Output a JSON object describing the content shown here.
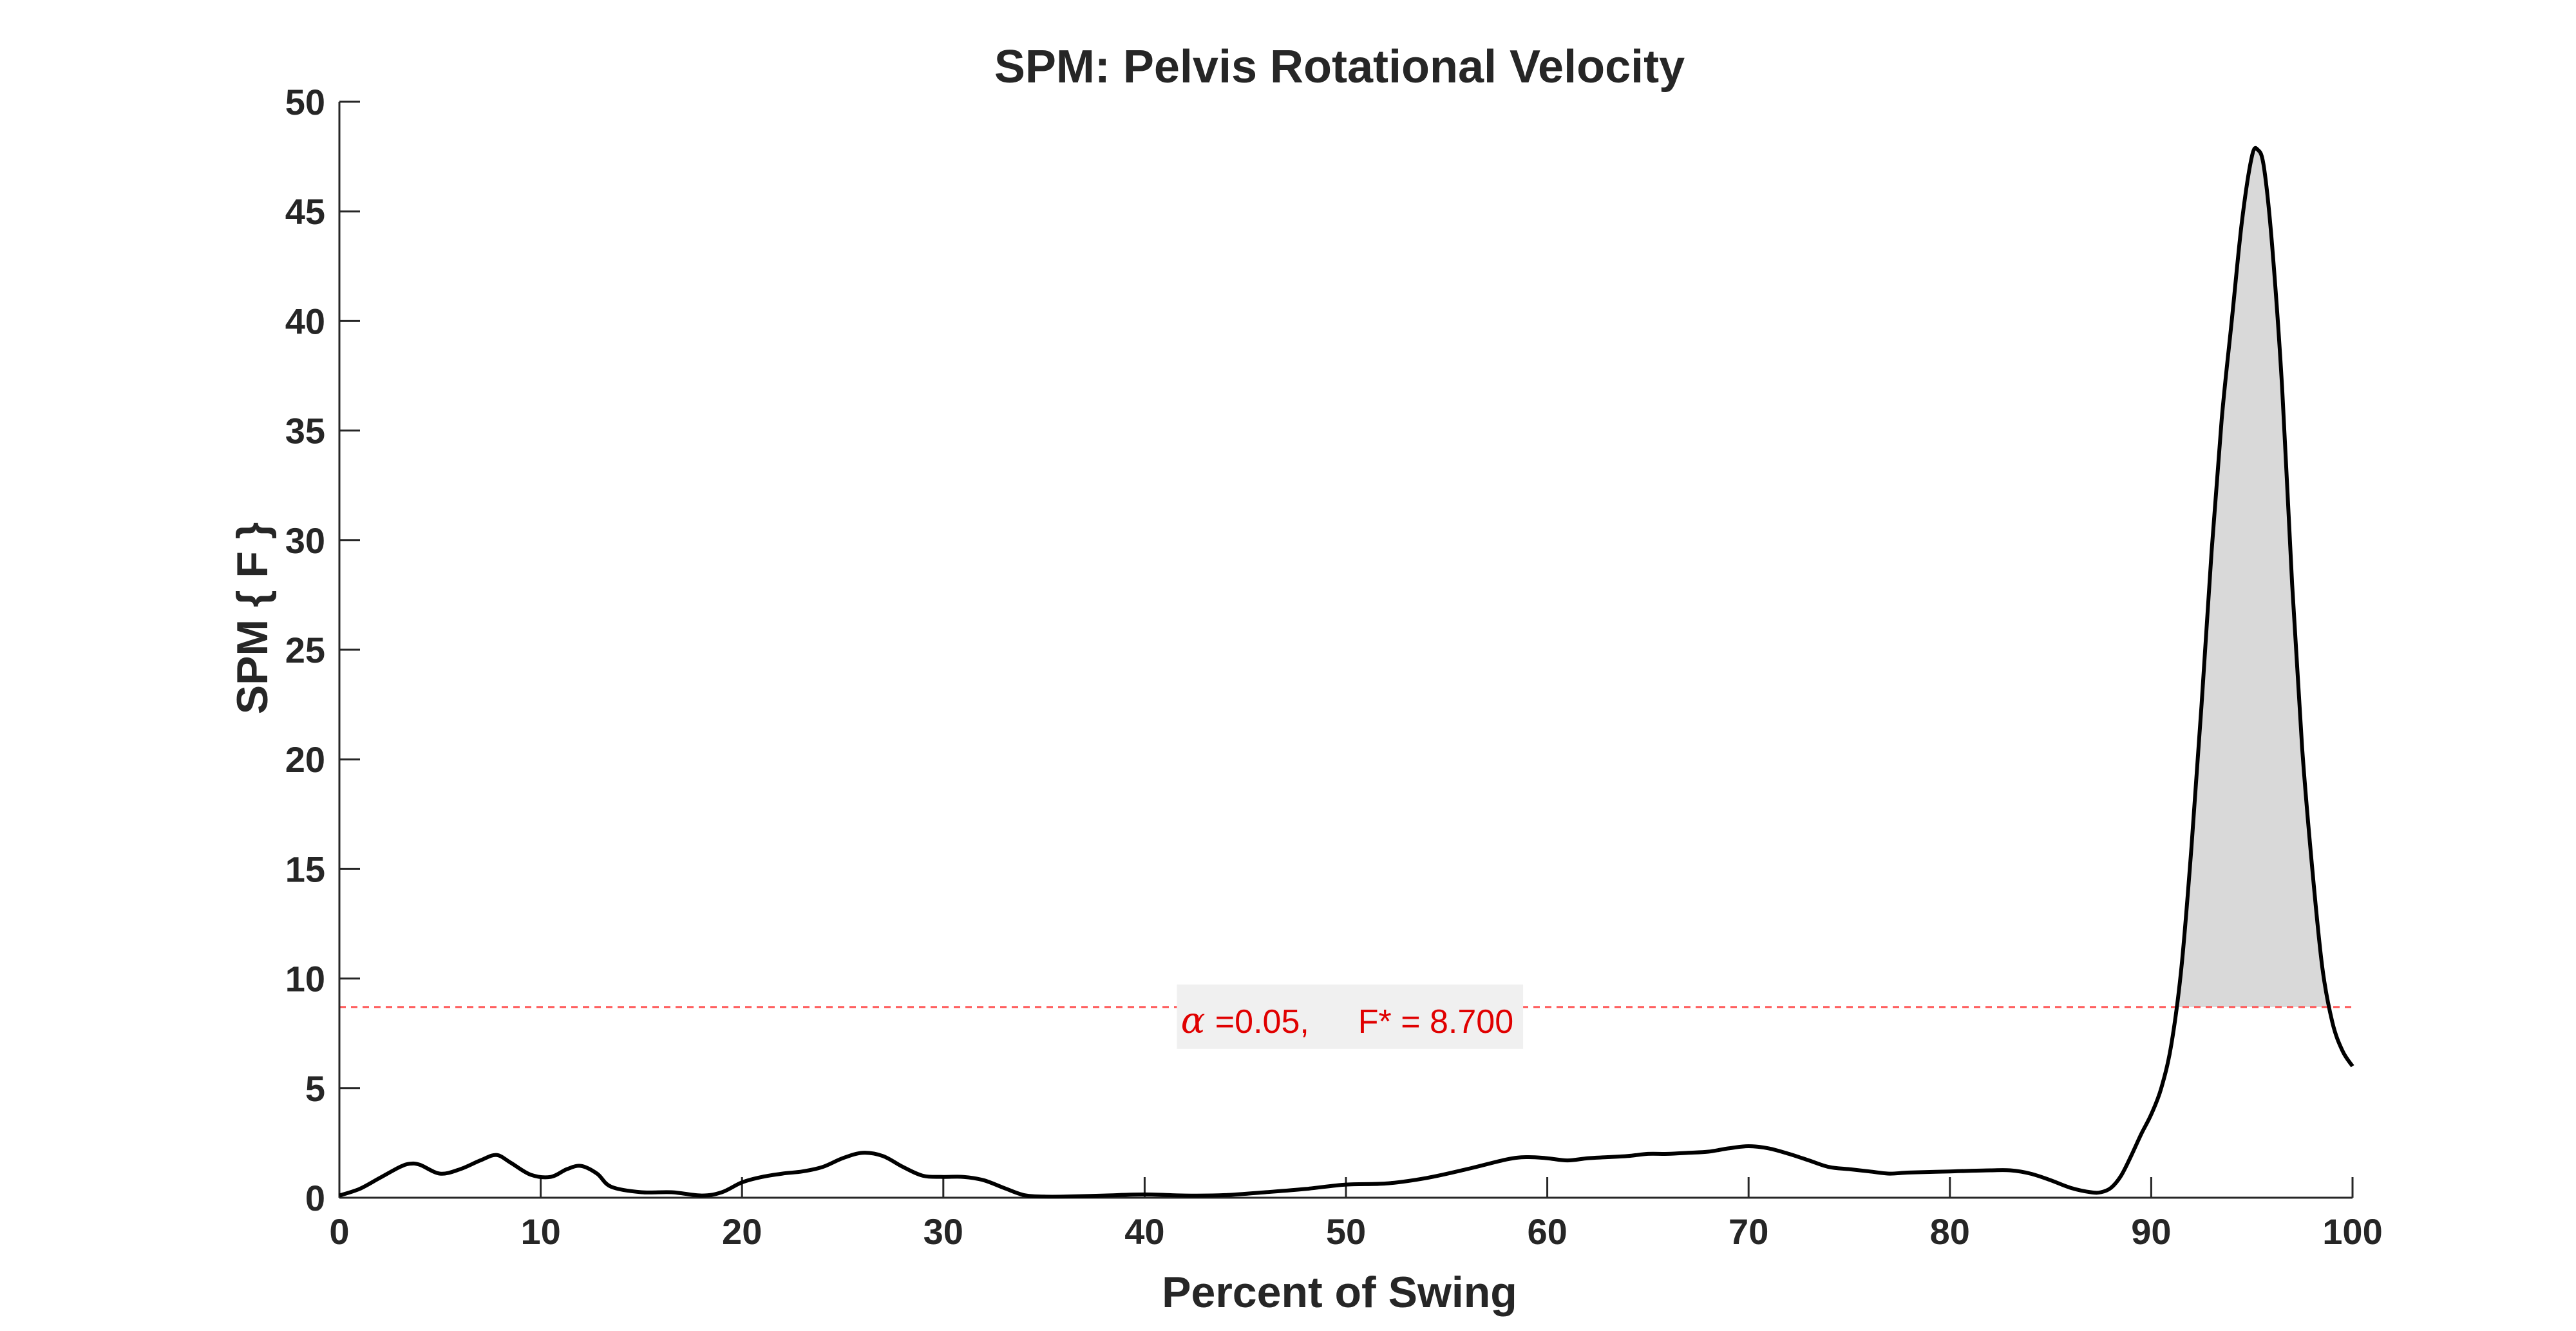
{
  "chart_data": {
    "type": "line",
    "title": "SPM: Pelvis Rotational Velocity",
    "xlabel": "Percent of Swing",
    "ylabel": "SPM { F }",
    "xlim": [
      0,
      100
    ],
    "ylim": [
      0,
      50
    ],
    "xticks": [
      0,
      10,
      20,
      30,
      40,
      50,
      60,
      70,
      80,
      90,
      100
    ],
    "yticks": [
      0,
      5,
      10,
      15,
      20,
      25,
      30,
      35,
      40,
      45,
      50
    ],
    "grid": false,
    "line_color": "#000000",
    "threshold": {
      "value": 8.7,
      "color": "#ff5555",
      "style": "dashed",
      "label_alpha_symbol": "α",
      "label_alpha": "=0.05,",
      "label_fstar": "F* = 8.700"
    },
    "suprathreshold_fill": "#d9d9d9",
    "series": [
      {
        "x": [
          0,
          1,
          2,
          3,
          3.5,
          4,
          5,
          6,
          7,
          7.8,
          8.5,
          9.5,
          10.5,
          11.3,
          12,
          12.8,
          13.5,
          15,
          16.5,
          18,
          19,
          20,
          21,
          22,
          23,
          24,
          25,
          26,
          27,
          28,
          29,
          30,
          31,
          32,
          33,
          34,
          35,
          36,
          38,
          40,
          42,
          44,
          46,
          48,
          50,
          52,
          54,
          56,
          58,
          59,
          60,
          61,
          62,
          63,
          64,
          65,
          66,
          67,
          68,
          69,
          70,
          71,
          72,
          73,
          74,
          75,
          76,
          77,
          78,
          80,
          82,
          83,
          84,
          85,
          86,
          87,
          87.5,
          88,
          88.5,
          89,
          89.5,
          90,
          90.5,
          91,
          91.5,
          92,
          92.5,
          93,
          93.5,
          94,
          94.5,
          95,
          95.3,
          95.6,
          96,
          96.5,
          97,
          97.5,
          98,
          98.5,
          99,
          99.5,
          100
        ],
        "y": [
          0.1,
          0.4,
          0.9,
          1.4,
          1.55,
          1.5,
          1.1,
          1.3,
          1.7,
          1.95,
          1.6,
          1.05,
          0.95,
          1.3,
          1.45,
          1.1,
          0.5,
          0.25,
          0.25,
          0.1,
          0.25,
          0.7,
          0.95,
          1.1,
          1.2,
          1.4,
          1.8,
          2.05,
          1.9,
          1.4,
          1.0,
          0.95,
          0.95,
          0.8,
          0.45,
          0.12,
          0.05,
          0.05,
          0.1,
          0.15,
          0.1,
          0.12,
          0.25,
          0.4,
          0.6,
          0.65,
          0.9,
          1.3,
          1.75,
          1.85,
          1.8,
          1.7,
          1.8,
          1.85,
          1.9,
          2.0,
          2.0,
          2.05,
          2.1,
          2.25,
          2.35,
          2.25,
          2.0,
          1.7,
          1.4,
          1.3,
          1.2,
          1.1,
          1.15,
          1.2,
          1.25,
          1.25,
          1.1,
          0.8,
          0.45,
          0.25,
          0.25,
          0.45,
          1.0,
          1.9,
          2.9,
          3.8,
          5.0,
          7.0,
          10.5,
          16.0,
          22.5,
          29.5,
          35.5,
          40.0,
          44.5,
          47.5,
          47.8,
          47.0,
          43.5,
          37.0,
          28.0,
          20.5,
          15.0,
          10.5,
          8.0,
          6.7,
          6.0
        ]
      }
    ]
  }
}
